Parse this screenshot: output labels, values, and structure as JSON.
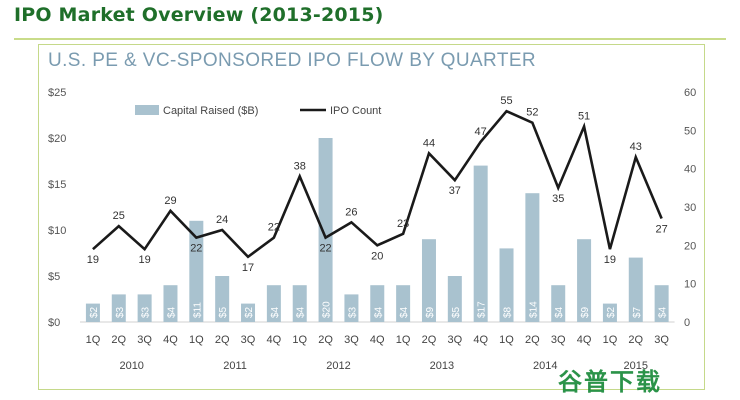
{
  "page": {
    "title": "IPO Market Overview (2013-2015)"
  },
  "watermark": "谷普下载",
  "chart_data": {
    "type": "bar",
    "title": "U.S. PE & VC-SPONSORED IPO FLOW BY QUARTER",
    "categories": [
      "1Q",
      "2Q",
      "3Q",
      "4Q",
      "1Q",
      "2Q",
      "3Q",
      "4Q",
      "1Q",
      "2Q",
      "3Q",
      "4Q",
      "1Q",
      "2Q",
      "3Q",
      "4Q",
      "1Q",
      "2Q",
      "3Q",
      "4Q",
      "1Q",
      "2Q",
      "3Q"
    ],
    "years": [
      {
        "label": "2010",
        "from": 0,
        "to": 3
      },
      {
        "label": "2011",
        "from": 4,
        "to": 7
      },
      {
        "label": "2012",
        "from": 8,
        "to": 11
      },
      {
        "label": "2013",
        "from": 12,
        "to": 15
      },
      {
        "label": "2014",
        "from": 16,
        "to": 19
      },
      {
        "label": "2015",
        "from": 20,
        "to": 22
      }
    ],
    "series": [
      {
        "name": "Capital Raised ($B)",
        "type": "bar",
        "axis": "left",
        "values": [
          2,
          3,
          3,
          4,
          11,
          5,
          2,
          4,
          4,
          20,
          3,
          4,
          4,
          9,
          5,
          17,
          8,
          14,
          4,
          9,
          2,
          7,
          4
        ],
        "labels": [
          "$2",
          "$3",
          "$3",
          "$4",
          "$11",
          "$5",
          "$2",
          "$4",
          "$4",
          "$20",
          "$3",
          "$4",
          "$4",
          "$9",
          "$5",
          "$17",
          "$8",
          "$14",
          "$4",
          "$9",
          "$2",
          "$7",
          "$4"
        ],
        "color": "#a9c2cf"
      },
      {
        "name": "IPO Count",
        "type": "line",
        "axis": "right",
        "values": [
          19,
          25,
          19,
          29,
          22,
          24,
          17,
          22,
          38,
          22,
          26,
          20,
          23,
          44,
          37,
          47,
          55,
          52,
          35,
          51,
          19,
          43,
          27
        ],
        "color": "#1a1a1a"
      }
    ],
    "left_axis": {
      "ticks": [
        "$0",
        "$5",
        "$10",
        "$15",
        "$20",
        "$25"
      ],
      "min": 0,
      "max": 25
    },
    "right_axis": {
      "ticks": [
        "0",
        "10",
        "20",
        "30",
        "40",
        "50",
        "60"
      ],
      "min": 0,
      "max": 60
    },
    "legend_position": "top",
    "grid": false
  }
}
